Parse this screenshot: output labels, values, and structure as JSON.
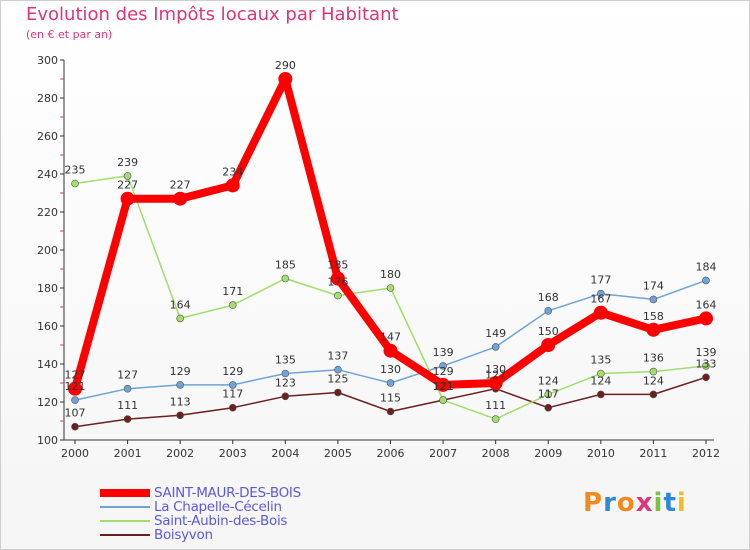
{
  "header": {
    "title": "Evolution des Impôts locaux par Habitant",
    "subtitle": "(en € et par an)"
  },
  "chart_data": {
    "type": "line",
    "title": "Evolution des Impôts locaux par Habitant",
    "subtitle": "(en € et par an)",
    "xlabel": "",
    "ylabel": "",
    "x": [
      "2000",
      "2001",
      "2002",
      "2003",
      "2004",
      "2005",
      "2006",
      "2007",
      "2008",
      "2009",
      "2010",
      "2011",
      "2012"
    ],
    "ylim": [
      100,
      300
    ],
    "yticks": [
      100,
      120,
      140,
      160,
      180,
      200,
      220,
      240,
      260,
      280,
      300
    ],
    "grid": false,
    "legend_position": "bottom-left",
    "series": [
      {
        "name": "SAINT-MAUR-DES-BOIS",
        "color": "#ff0000",
        "values": [
          127,
          227,
          227,
          234,
          290,
          185,
          147,
          129,
          130,
          150,
          167,
          158,
          164
        ]
      },
      {
        "name": "La Chapelle-Cécelin",
        "color": "#6fa3d6",
        "values": [
          121,
          127,
          129,
          129,
          135,
          137,
          130,
          139,
          149,
          168,
          177,
          174,
          184
        ]
      },
      {
        "name": "Saint-Aubin-des-Bois",
        "color": "#a3dd6b",
        "values": [
          235,
          239,
          164,
          171,
          185,
          176,
          180,
          121,
          111,
          124,
          135,
          136,
          139
        ]
      },
      {
        "name": "Boisyvon",
        "color": "#6b1f1f",
        "values": [
          107,
          111,
          113,
          117,
          123,
          125,
          115,
          121,
          127,
          117,
          124,
          124,
          133
        ]
      }
    ]
  },
  "legend": {
    "items": [
      {
        "label": "SAINT-MAUR-DES-BOIS"
      },
      {
        "label": "La Chapelle-Cécelin"
      },
      {
        "label": "Saint-Aubin-des-Bois"
      },
      {
        "label": "Boisyvon"
      }
    ]
  },
  "logo": {
    "letters": [
      "P",
      "r",
      "o",
      "x",
      "i",
      "t",
      "i"
    ],
    "colors": [
      "#f08a1c",
      "#2e88d8",
      "#f08a1c",
      "#e0337a",
      "#7ac143",
      "#2e88d8",
      "#f0c020"
    ]
  }
}
